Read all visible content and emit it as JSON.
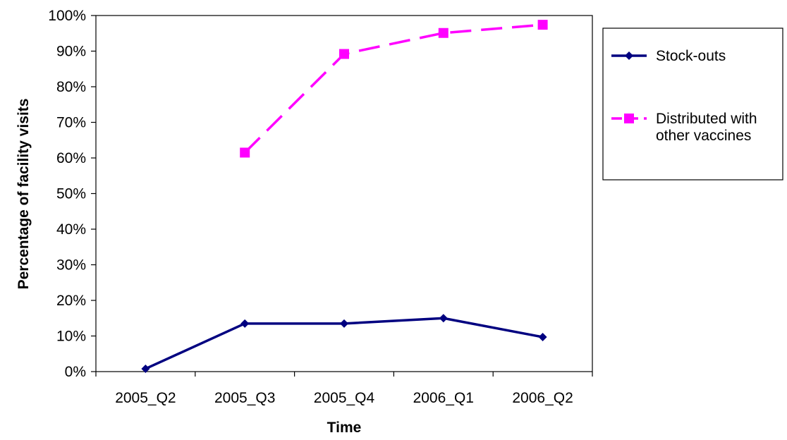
{
  "chart_data": {
    "type": "line",
    "title": "",
    "xlabel": "Time",
    "ylabel": "Percentage of facility visits",
    "categories": [
      "2005_Q2",
      "2005_Q3",
      "2005_Q4",
      "2006_Q1",
      "2006_Q2"
    ],
    "ylim": [
      0,
      100
    ],
    "yticks": [
      "0%",
      "10%",
      "20%",
      "30%",
      "40%",
      "50%",
      "60%",
      "70%",
      "80%",
      "90%",
      "100%"
    ],
    "grid": false,
    "legend_position": "right",
    "series": [
      {
        "name": "Stock-outs",
        "values": [
          0.8,
          13.5,
          13.5,
          15.0,
          9.7
        ],
        "color": "#000080",
        "marker": "diamond",
        "line_style": "solid"
      },
      {
        "name": "Distributed with other vaccines",
        "legend_lines": [
          "Distributed with",
          "other vaccines"
        ],
        "values": [
          null,
          61.5,
          89.2,
          95.1,
          97.4
        ],
        "color": "#ff00ff",
        "marker": "square",
        "line_style": "dashed"
      }
    ]
  }
}
